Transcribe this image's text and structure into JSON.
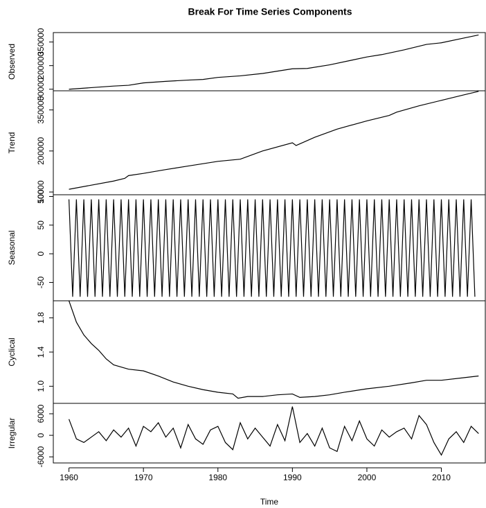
{
  "title": "Break For Time Series Components",
  "chart_data": [
    {
      "type": "line",
      "y_label": "Observed",
      "color": "#000000",
      "xlim": [
        1957.9,
        2015.9
      ],
      "ylim": [
        40000,
        410000
      ],
      "yticks": [
        50000,
        200000,
        350000
      ],
      "x": [
        1960,
        1963,
        1966,
        1968,
        1970,
        1973,
        1976,
        1978,
        1980,
        1983,
        1986,
        1988,
        1990,
        1992,
        1995,
        1998,
        2000,
        2002,
        2005,
        2008,
        2010,
        2013,
        2015
      ],
      "values": [
        50000,
        60000,
        70000,
        75000,
        90000,
        100000,
        108000,
        112000,
        125000,
        135000,
        150000,
        165000,
        180000,
        182000,
        205000,
        235000,
        255000,
        270000,
        300000,
        335000,
        345000,
        375000,
        395000
      ]
    },
    {
      "type": "line",
      "y_label": "Trend",
      "color": "#000000",
      "xlim": [
        1957.9,
        2015.9
      ],
      "ylim": [
        40000,
        420000
      ],
      "yticks": [
        50000,
        200000,
        350000
      ],
      "x": [
        1960,
        1963,
        1966,
        1967.5,
        1968,
        1970,
        1973,
        1976,
        1980,
        1983,
        1986,
        1990,
        1990.5,
        1993,
        1996,
        2000,
        2003,
        2004,
        2007,
        2010,
        2013,
        2015
      ],
      "values": [
        60000,
        75000,
        90000,
        100000,
        110000,
        118000,
        132000,
        145000,
        162000,
        170000,
        200000,
        230000,
        220000,
        250000,
        280000,
        310000,
        330000,
        342000,
        365000,
        385000,
        405000,
        418000
      ]
    },
    {
      "type": "line",
      "y_label": "Seasonal",
      "color": "#000000",
      "xlim": [
        1957.9,
        2015.9
      ],
      "ylim": [
        -82,
        103
      ],
      "yticks": [
        -50,
        0,
        50,
        100
      ],
      "x": [
        1960,
        1960.5,
        1961,
        1961.5,
        1962,
        1962.5,
        1963,
        1963.5,
        1964,
        1964.5,
        1965,
        1965.5,
        1966,
        1966.5,
        1967,
        1967.5,
        1968,
        1968.5,
        1969,
        1969.5,
        1970,
        1970.5,
        1971,
        1971.5,
        1972,
        1972.5,
        1973,
        1973.5,
        1974,
        1974.5,
        1975,
        1975.5,
        1976,
        1976.5,
        1977,
        1977.5,
        1978,
        1978.5,
        1979,
        1979.5,
        1980,
        1980.5,
        1981,
        1981.5,
        1982,
        1982.5,
        1983,
        1983.5,
        1984,
        1984.5,
        1985,
        1985.5,
        1986,
        1986.5,
        1987,
        1987.5,
        1988,
        1988.5,
        1989,
        1989.5,
        1990,
        1990.5,
        1991,
        1991.5,
        1992,
        1992.5,
        1993,
        1993.5,
        1994,
        1994.5,
        1995,
        1995.5,
        1996,
        1996.5,
        1997,
        1997.5,
        1998,
        1998.5,
        1999,
        1999.5,
        2000,
        2000.5,
        2001,
        2001.5,
        2002,
        2002.5,
        2003,
        2003.5,
        2004,
        2004.5,
        2005,
        2005.5,
        2006,
        2006.5,
        2007,
        2007.5,
        2008,
        2008.5,
        2009,
        2009.5,
        2010,
        2010.5,
        2011,
        2011.5,
        2012,
        2012.5,
        2013,
        2013.5,
        2014,
        2014.5
      ],
      "values": [
        95,
        -75,
        95,
        -75,
        95,
        -75,
        95,
        -75,
        95,
        -75,
        95,
        -75,
        95,
        -75,
        95,
        -75,
        95,
        -75,
        95,
        -75,
        95,
        -75,
        95,
        -75,
        95,
        -75,
        95,
        -75,
        95,
        -75,
        95,
        -75,
        95,
        -75,
        95,
        -75,
        95,
        -75,
        95,
        -75,
        95,
        -75,
        95,
        -75,
        95,
        -75,
        95,
        -75,
        95,
        -75,
        95,
        -75,
        95,
        -75,
        95,
        -75,
        95,
        -75,
        95,
        -75,
        95,
        -75,
        95,
        -75,
        95,
        -75,
        95,
        -75,
        95,
        -75,
        95,
        -75,
        95,
        -75,
        95,
        -75,
        95,
        -75,
        95,
        -75,
        95,
        -75,
        95,
        -75,
        95,
        -75,
        95,
        -75,
        95,
        -75,
        95,
        -75,
        95,
        -75,
        95,
        -75,
        95,
        -75,
        95,
        -75,
        95,
        -75,
        95,
        -75,
        95,
        -75,
        95,
        -75,
        95,
        -75
      ]
    },
    {
      "type": "line",
      "y_label": "Cyclical",
      "color": "#000000",
      "xlim": [
        1957.9,
        2015.9
      ],
      "ylim": [
        0.8,
        2.0
      ],
      "yticks": [
        {
          "value": 1,
          "label": "1.0"
        },
        1.4,
        1.8
      ],
      "x": [
        1960,
        1961,
        1962,
        1963,
        1964,
        1965,
        1966,
        1968,
        1970,
        1972,
        1974,
        1976,
        1978,
        1980,
        1982,
        1982.7,
        1984,
        1986,
        1988,
        1990,
        1991,
        1993,
        1995,
        1997,
        2000,
        2003,
        2006,
        2008,
        2010,
        2013,
        2015
      ],
      "values": [
        2.0,
        1.75,
        1.6,
        1.5,
        1.42,
        1.32,
        1.25,
        1.2,
        1.18,
        1.12,
        1.05,
        1.0,
        0.96,
        0.93,
        0.91,
        0.86,
        0.88,
        0.88,
        0.9,
        0.91,
        0.87,
        0.88,
        0.9,
        0.93,
        0.97,
        1.0,
        1.04,
        1.07,
        1.07,
        1.1,
        1.12
      ]
    },
    {
      "type": "line",
      "y_label": "Irregular",
      "color": "#000000",
      "xlim": [
        1957.9,
        2015.9
      ],
      "ylim": [
        -7700,
        8900
      ],
      "yticks": [
        -6000,
        0,
        6000
      ],
      "x_label": "Time",
      "xticks": [
        1960,
        1970,
        1980,
        1990,
        2000,
        2010
      ],
      "x": [
        1960,
        1961,
        1962,
        1963,
        1964,
        1965,
        1966,
        1967,
        1968,
        1969,
        1970,
        1971,
        1972,
        1973,
        1974,
        1975,
        1976,
        1977,
        1978,
        1979,
        1980,
        1981,
        1982,
        1983,
        1984,
        1985,
        1986,
        1987,
        1988,
        1989,
        1990,
        1991,
        1992,
        1993,
        1994,
        1995,
        1996,
        1997,
        1998,
        1999,
        2000,
        2001,
        2002,
        2003,
        2004,
        2005,
        2006,
        2007,
        2008,
        2009,
        2010,
        2011,
        2012,
        2013,
        2014,
        2015
      ],
      "values": [
        4500,
        -1000,
        -2000,
        -500,
        1000,
        -1500,
        1500,
        -500,
        2000,
        -3000,
        2500,
        1000,
        3500,
        -500,
        2000,
        -3500,
        3000,
        -1000,
        -2500,
        1500,
        2500,
        -2000,
        -4000,
        3500,
        -1000,
        2000,
        -500,
        -3000,
        3000,
        -1500,
        8000,
        -2000,
        500,
        -3000,
        2000,
        -3500,
        -4500,
        2500,
        -1500,
        4000,
        -1000,
        -3000,
        1500,
        -500,
        1000,
        2000,
        -1000,
        5500,
        3000,
        -2000,
        -5500,
        -1000,
        1000,
        -2000,
        2500,
        500
      ]
    }
  ]
}
